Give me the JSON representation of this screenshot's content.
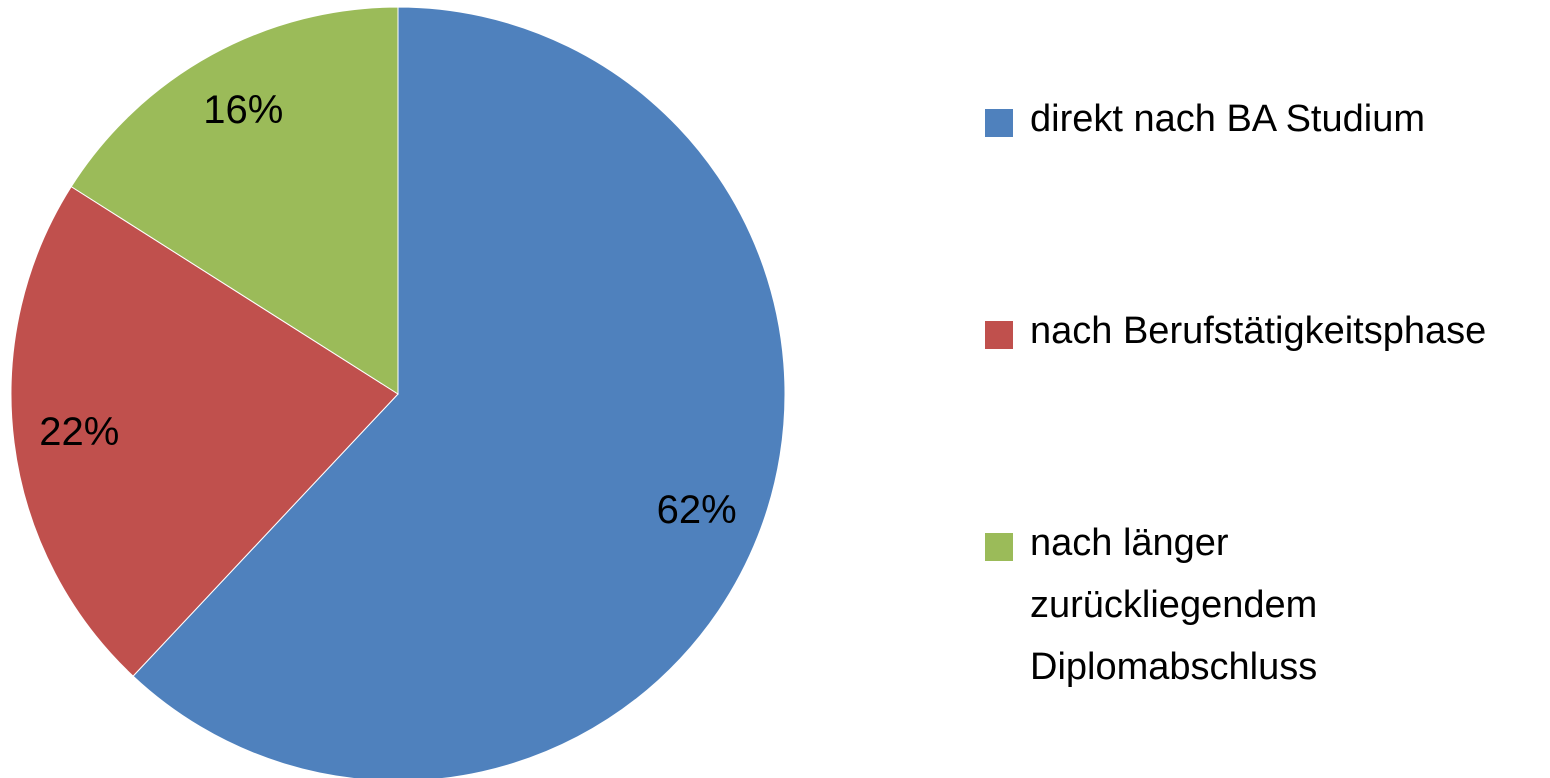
{
  "chart_data": {
    "type": "pie",
    "categories": [
      "direkt nach BA Studium",
      "nach Berufstätigkeitsphase",
      "nach länger zurückliegendem Diplomabschluss"
    ],
    "values": [
      62,
      22,
      16
    ],
    "value_labels": [
      "62%",
      "22%",
      "16%"
    ],
    "colors": [
      "#4f81bd",
      "#c0504d",
      "#9bbb59"
    ],
    "legend": "right"
  }
}
